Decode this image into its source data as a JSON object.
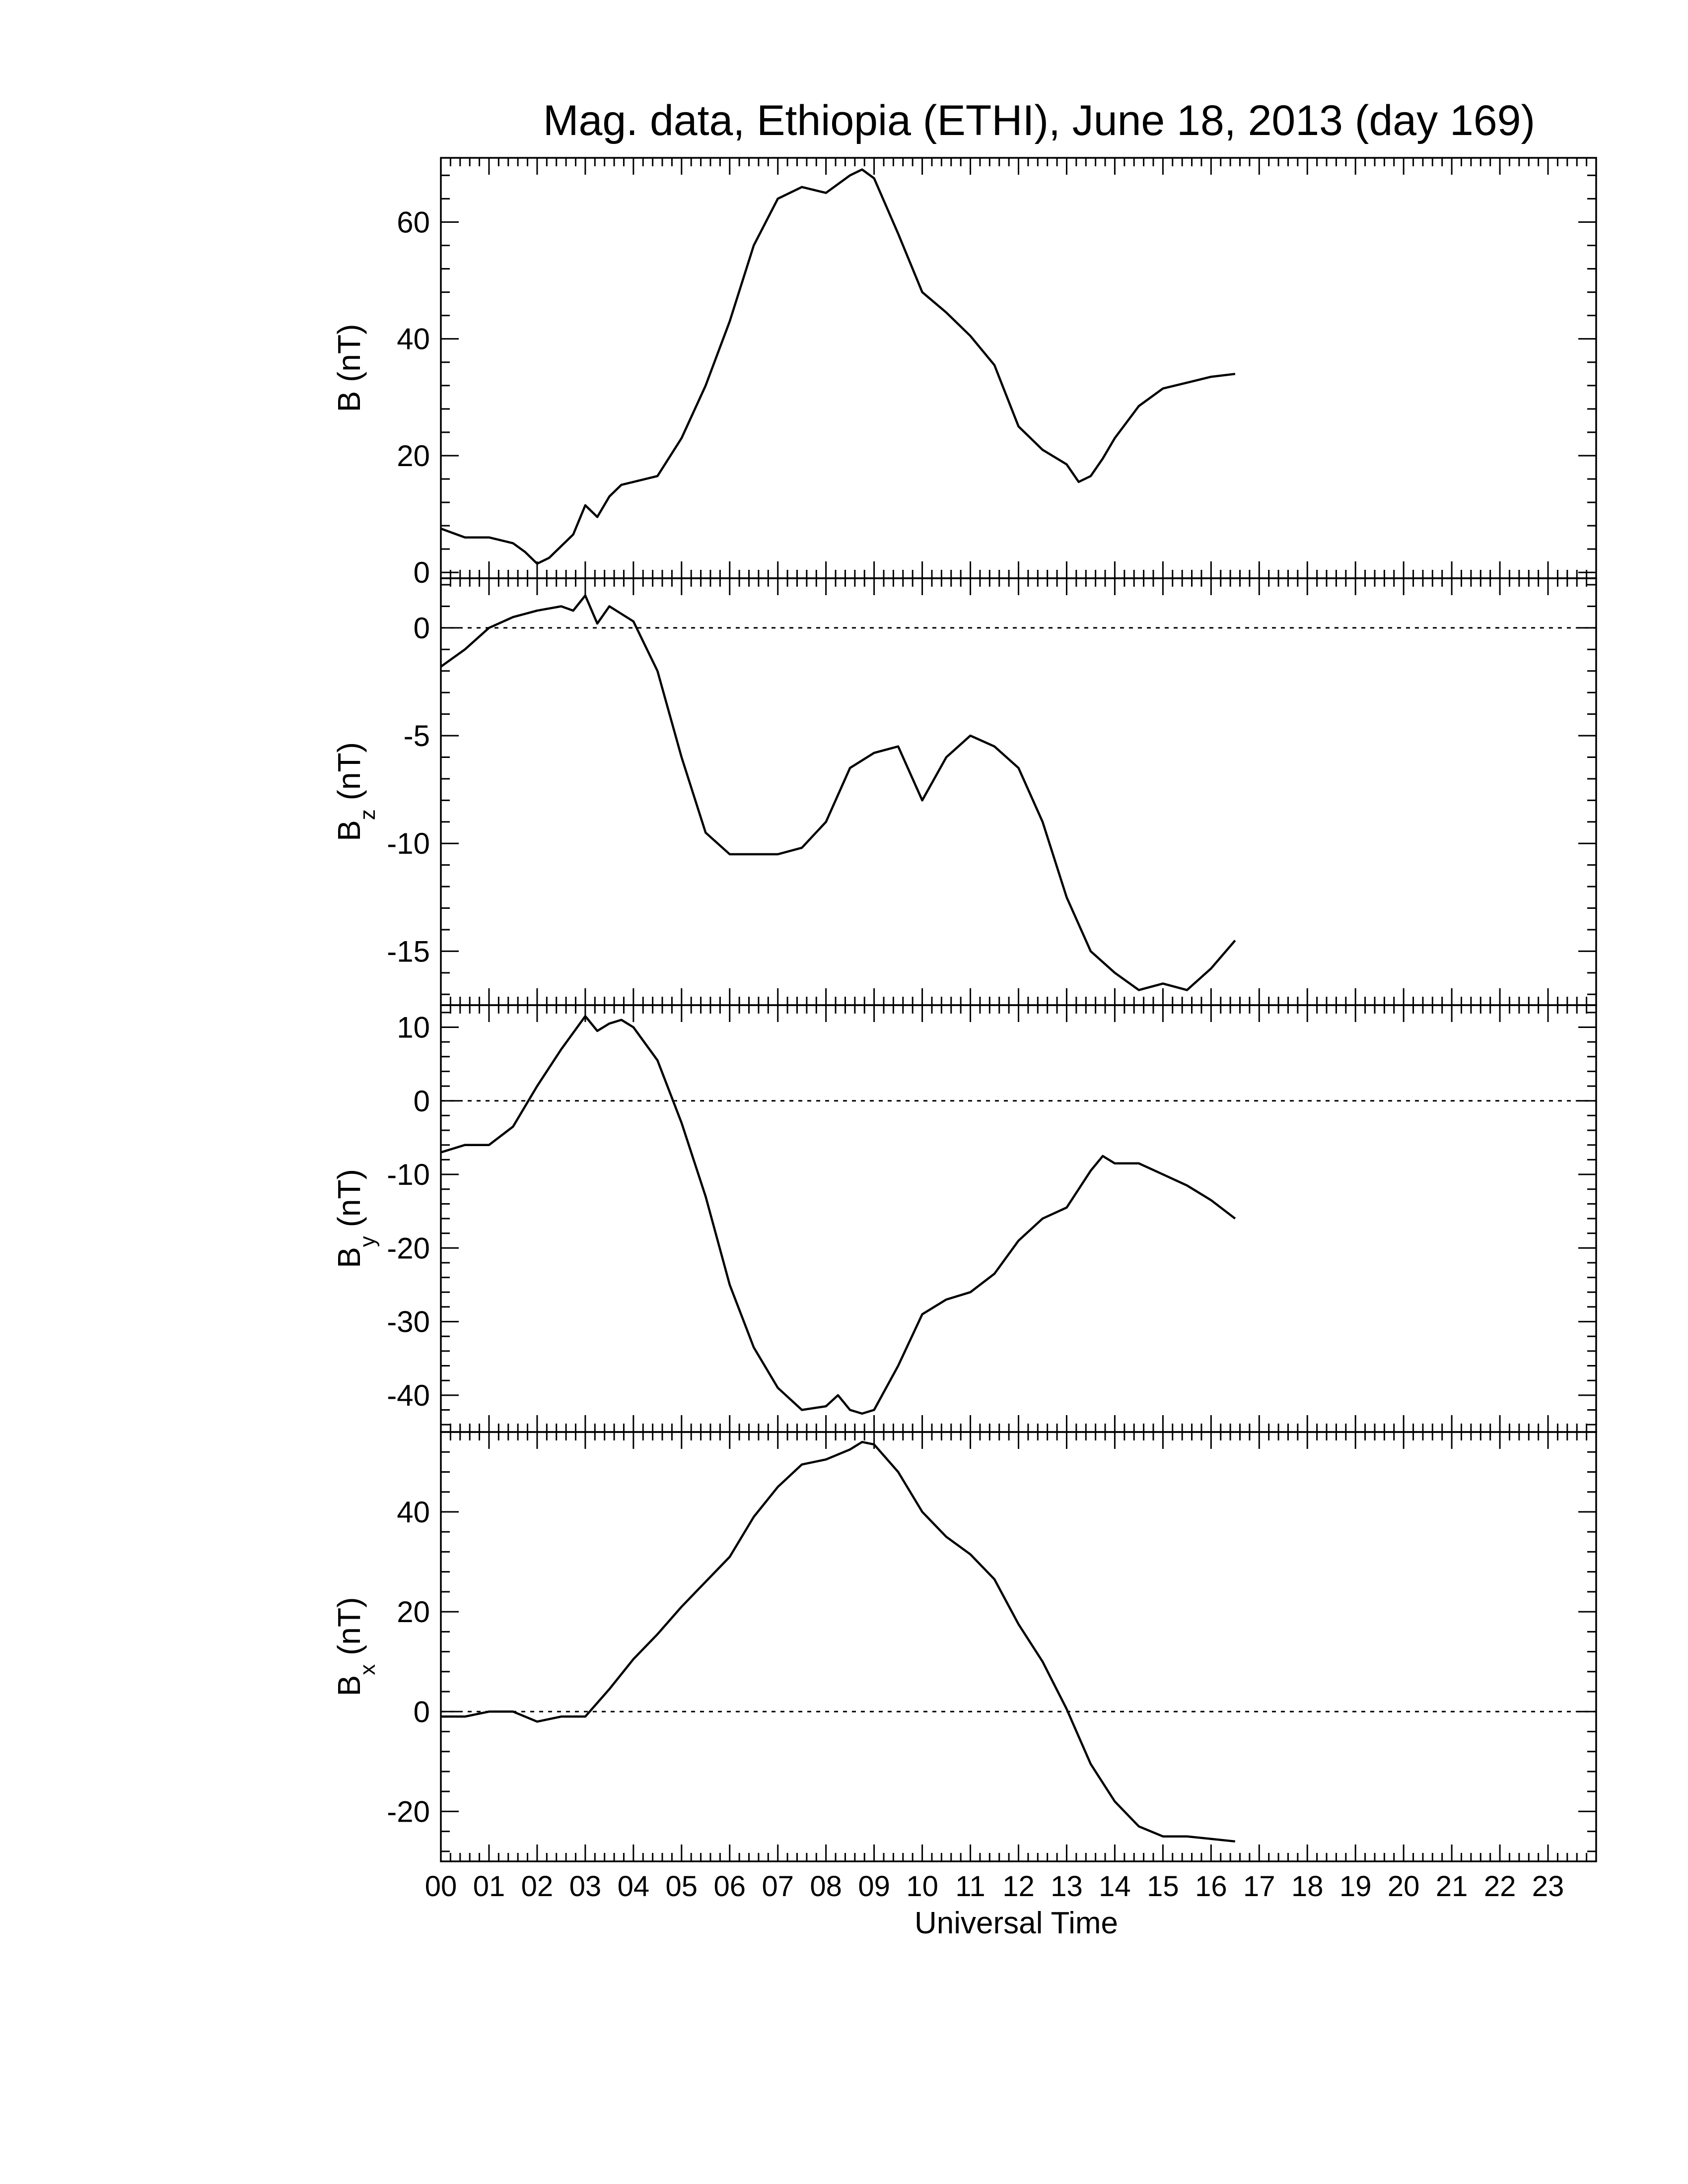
{
  "chart_data": {
    "type": "line",
    "title": "Mag. data, Ethiopia (ETHI), June 18, 2013 (day 169)",
    "xlabel": "Universal Time",
    "xlim": [
      0,
      24
    ],
    "x_tick_labels": [
      "00",
      "01",
      "02",
      "03",
      "04",
      "05",
      "06",
      "07",
      "08",
      "09",
      "10",
      "11",
      "12",
      "13",
      "14",
      "15",
      "16",
      "17",
      "18",
      "19",
      "20",
      "21",
      "22",
      "23"
    ],
    "line_color": "#000000",
    "panels": [
      {
        "id": "b",
        "ylabel_main": "B",
        "ylabel_sub": "",
        "ylabel_unit": " (nT)",
        "ylim": [
          -1,
          71
        ],
        "yticks": [
          0,
          20,
          40,
          60
        ],
        "ytick_labels": [
          "0",
          "20",
          "40",
          "60"
        ],
        "zero_line": false,
        "x": [
          0.0,
          0.5,
          1.0,
          1.5,
          1.75,
          2.0,
          2.25,
          2.5,
          2.75,
          3.0,
          3.25,
          3.5,
          3.75,
          4.0,
          4.5,
          5.0,
          5.5,
          6.0,
          6.5,
          7.0,
          7.5,
          8.0,
          8.25,
          8.5,
          8.75,
          9.0,
          9.5,
          10.0,
          10.5,
          11.0,
          11.5,
          12.0,
          12.5,
          13.0,
          13.25,
          13.5,
          13.75,
          14.0,
          14.5,
          15.0,
          15.5,
          16.0,
          16.5
        ],
        "y": [
          7.5,
          6.0,
          6.0,
          5.0,
          3.5,
          1.5,
          2.5,
          4.5,
          6.5,
          11.5,
          9.5,
          13.0,
          15.0,
          15.5,
          16.5,
          23.0,
          32.0,
          43.0,
          56.0,
          64.0,
          66.0,
          65.0,
          66.5,
          68.0,
          69.0,
          67.5,
          58.0,
          48.0,
          44.5,
          40.5,
          35.5,
          25.0,
          21.0,
          18.5,
          15.5,
          16.5,
          19.5,
          23.0,
          28.5,
          31.5,
          32.5,
          33.5,
          34.0
        ]
      },
      {
        "id": "bz",
        "ylabel_main": "B",
        "ylabel_sub": "z",
        "ylabel_unit": " (nT)",
        "ylim": [
          -17.5,
          2.3
        ],
        "yticks": [
          0,
          -5,
          -10,
          -15
        ],
        "ytick_labels": [
          "0",
          "-5",
          "-10",
          "-15"
        ],
        "zero_line": true,
        "x": [
          0.0,
          0.5,
          1.0,
          1.5,
          2.0,
          2.5,
          2.75,
          3.0,
          3.25,
          3.5,
          4.0,
          4.5,
          5.0,
          5.5,
          6.0,
          6.5,
          7.0,
          7.5,
          8.0,
          8.5,
          9.0,
          9.5,
          10.0,
          10.5,
          11.0,
          11.5,
          12.0,
          12.5,
          13.0,
          13.5,
          14.0,
          14.5,
          15.0,
          15.5,
          16.0,
          16.5
        ],
        "y": [
          -1.8,
          -1.0,
          0.0,
          0.5,
          0.8,
          1.0,
          0.8,
          1.5,
          0.2,
          1.0,
          0.3,
          -2.0,
          -6.0,
          -9.5,
          -10.5,
          -10.5,
          -10.5,
          -10.2,
          -9.0,
          -6.5,
          -5.8,
          -5.5,
          -8.0,
          -6.0,
          -5.0,
          -5.5,
          -6.5,
          -9.0,
          -12.5,
          -15.0,
          -16.0,
          -16.8,
          -16.5,
          -16.8,
          -15.8,
          -14.5
        ]
      },
      {
        "id": "by",
        "ylabel_main": "B",
        "ylabel_sub": "y",
        "ylabel_unit": " (nT)",
        "ylim": [
          -45,
          13
        ],
        "yticks": [
          10,
          0,
          -10,
          -20,
          -30,
          -40
        ],
        "ytick_labels": [
          "10",
          "0",
          "-10",
          "-20",
          "-30",
          "-40"
        ],
        "zero_line": true,
        "x": [
          0.0,
          0.5,
          1.0,
          1.5,
          2.0,
          2.5,
          3.0,
          3.25,
          3.5,
          3.75,
          4.0,
          4.5,
          5.0,
          5.5,
          6.0,
          6.5,
          7.0,
          7.5,
          8.0,
          8.25,
          8.5,
          8.75,
          9.0,
          9.5,
          10.0,
          10.5,
          11.0,
          11.5,
          12.0,
          12.5,
          13.0,
          13.5,
          13.75,
          14.0,
          14.5,
          15.0,
          15.5,
          16.0,
          16.5
        ],
        "y": [
          -7.0,
          -6.0,
          -6.0,
          -3.5,
          2.0,
          7.0,
          11.5,
          9.5,
          10.5,
          11.0,
          10.0,
          5.5,
          -3.0,
          -13.0,
          -25.0,
          -33.5,
          -39.0,
          -42.0,
          -41.5,
          -40.0,
          -42.0,
          -42.5,
          -42.0,
          -36.0,
          -29.0,
          -27.0,
          -26.0,
          -23.5,
          -19.0,
          -16.0,
          -14.5,
          -9.5,
          -7.5,
          -8.5,
          -8.5,
          -10.0,
          -11.5,
          -13.5,
          -16.0
        ]
      },
      {
        "id": "bx",
        "ylabel_main": "B",
        "ylabel_sub": "x",
        "ylabel_unit": " (nT)",
        "ylim": [
          -30,
          56
        ],
        "yticks": [
          40,
          20,
          0,
          -20
        ],
        "ytick_labels": [
          "40",
          "20",
          "0",
          "-20"
        ],
        "zero_line": true,
        "x": [
          0.0,
          0.5,
          1.0,
          1.5,
          2.0,
          2.5,
          3.0,
          3.5,
          4.0,
          4.5,
          5.0,
          5.5,
          6.0,
          6.5,
          7.0,
          7.5,
          8.0,
          8.5,
          8.75,
          9.0,
          9.5,
          10.0,
          10.5,
          11.0,
          11.5,
          12.0,
          12.5,
          13.0,
          13.5,
          14.0,
          14.5,
          15.0,
          15.5,
          16.0,
          16.5
        ],
        "y": [
          -1.0,
          -1.0,
          0.0,
          0.0,
          -2.0,
          -1.0,
          -1.0,
          4.5,
          10.5,
          15.5,
          21.0,
          26.0,
          31.0,
          39.0,
          45.0,
          49.5,
          50.5,
          52.5,
          54.0,
          53.5,
          48.0,
          40.0,
          35.0,
          31.5,
          26.5,
          17.5,
          10.0,
          0.5,
          -10.5,
          -18.0,
          -23.0,
          -25.0,
          -25.0,
          -25.5,
          -26.0
        ]
      }
    ]
  }
}
